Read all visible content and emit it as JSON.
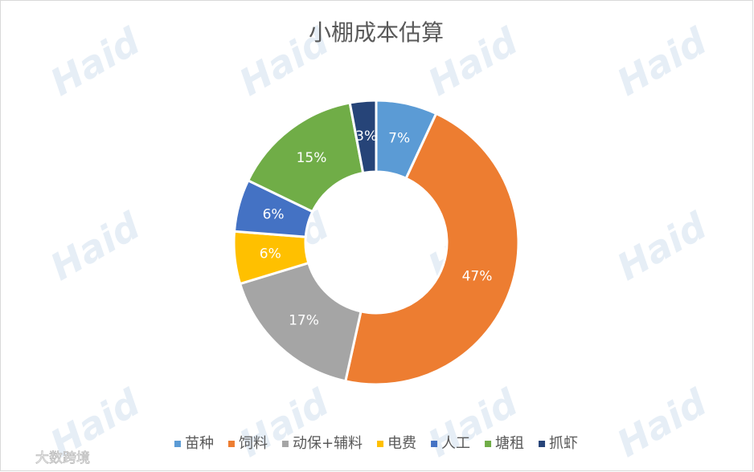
{
  "chart_data": {
    "type": "donut",
    "title": "小棚成本估算",
    "categories": [
      "苗种",
      "饲料",
      "动保+辅料",
      "电费",
      "人工",
      "塘租",
      "抓虾"
    ],
    "values": [
      7,
      47,
      17,
      6,
      6,
      15,
      3
    ],
    "value_labels": [
      "7%",
      "47%",
      "17%",
      "6%",
      "6%",
      "15%",
      "3%"
    ],
    "colors": [
      "#5b9bd5",
      "#ed7d31",
      "#a5a5a5",
      "#ffc000",
      "#4472c4",
      "#70ad47",
      "#264478"
    ],
    "legend": "bottom",
    "watermark": "Haid",
    "source_mark": "大数跨境"
  }
}
